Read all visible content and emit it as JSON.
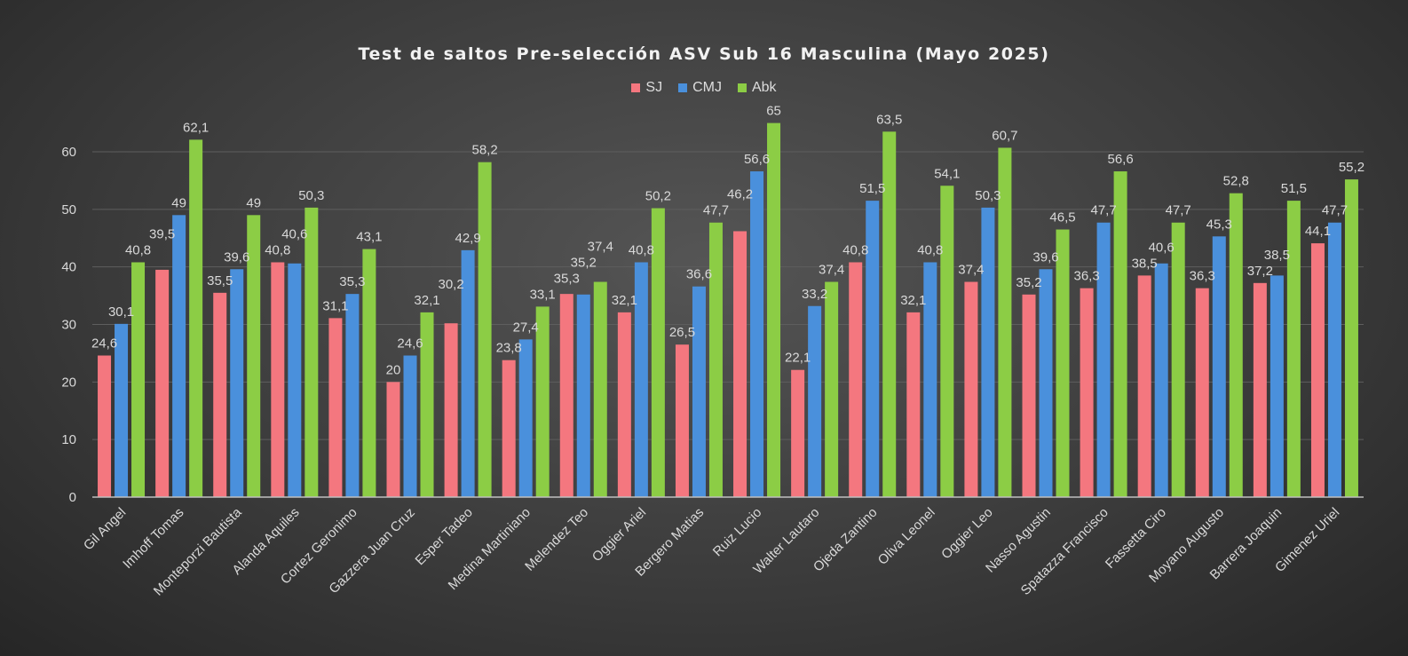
{
  "chart_data": {
    "type": "bar",
    "title": "Test de saltos Pre-selección ASV Sub 16 Masculina (Mayo 2025)",
    "xlabel": "",
    "ylabel": "",
    "ylim": [
      0,
      70
    ],
    "yticks": [
      0,
      10,
      20,
      30,
      40,
      50,
      60
    ],
    "grid": true,
    "legend_position": "top",
    "categories": [
      "Gil Angel",
      "Imhoff Tomas",
      "Monteporzi Bautista",
      "Alanda Aquiles",
      "Cortez Geronimo",
      "Gazzera Juan Cruz",
      "Esper Tadeo",
      "Medina Martiniano",
      "Melendez Teo",
      "Oggier Ariel",
      "Bergero Matias",
      "Ruiz Lucio",
      "Walter Lautaro",
      "Ojeda Zantino",
      "Oliva Leonel",
      "Oggier Leo",
      "Nasso Agustin",
      "Spatazza Francisco",
      "Fassetta Ciro",
      "Moyano Augusto",
      "Barrera Joaquin",
      "Gimenez Uriel"
    ],
    "series": [
      {
        "name": "SJ",
        "color": "#f4777f",
        "values": [
          24.6,
          39.5,
          35.5,
          40.8,
          31.1,
          20,
          30.2,
          23.8,
          35.3,
          32.1,
          26.5,
          46.2,
          22.1,
          40.8,
          32.1,
          37.4,
          35.2,
          36.3,
          38.5,
          36.3,
          37.2,
          44.1
        ]
      },
      {
        "name": "CMJ",
        "color": "#4a90dc",
        "values": [
          30.1,
          49,
          39.6,
          40.6,
          35.3,
          24.6,
          42.9,
          27.4,
          35.2,
          40.8,
          36.6,
          56.6,
          33.2,
          51.5,
          40.8,
          50.3,
          39.6,
          47.7,
          40.6,
          45.3,
          38.5,
          47.7
        ]
      },
      {
        "name": "Abk",
        "color": "#8ccd45",
        "values": [
          40.8,
          62.1,
          49,
          50.3,
          43.1,
          32.1,
          58.2,
          33.1,
          37.4,
          50.2,
          47.7,
          65,
          37.4,
          63.5,
          54.1,
          60.7,
          46.5,
          56.6,
          47.7,
          52.8,
          51.5,
          55.2
        ]
      }
    ]
  }
}
